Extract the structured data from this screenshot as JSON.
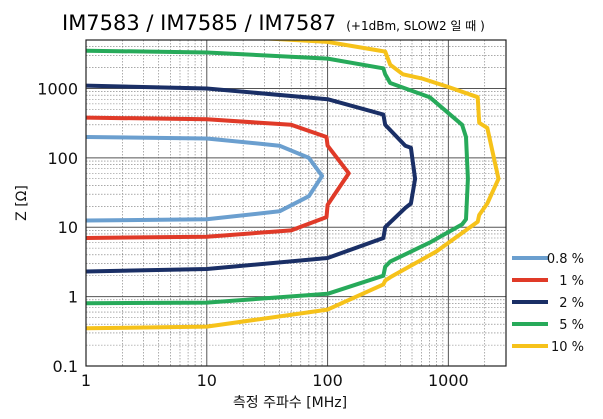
{
  "chart_data": {
    "type": "line",
    "title": "IM7583 / IM7585 / IM7587",
    "subtitle": "(+1dBm, SLOW2 일 때 )",
    "xlabel": "측정 주파수 [MHz]",
    "ylabel": "Z [Ω]",
    "x_scale": "log",
    "y_scale": "log",
    "xlim": [
      1,
      3000
    ],
    "ylim": [
      0.1,
      5000
    ],
    "grid": true,
    "x_ticks": [
      "1",
      "10",
      "100",
      "1000"
    ],
    "y_ticks": [
      "0.1",
      "1",
      "10",
      "100",
      "1000"
    ],
    "legend_position": "right",
    "series": [
      {
        "name": "0.8 %",
        "color": "#6b9fcf",
        "upper": [
          [
            1,
            200
          ],
          [
            10,
            190
          ],
          [
            40,
            150
          ],
          [
            70,
            100
          ],
          [
            90,
            55
          ]
        ],
        "lower": [
          [
            1,
            12.5
          ],
          [
            10,
            13
          ],
          [
            40,
            17
          ],
          [
            70,
            28
          ],
          [
            90,
            55
          ]
        ]
      },
      {
        "name": "1 %",
        "color": "#e03a28",
        "upper": [
          [
            1,
            380
          ],
          [
            10,
            360
          ],
          [
            50,
            300
          ],
          [
            98,
            200
          ],
          [
            100,
            150
          ],
          [
            150,
            60
          ]
        ],
        "lower": [
          [
            1,
            7
          ],
          [
            10,
            7.3
          ],
          [
            50,
            9
          ],
          [
            98,
            14
          ],
          [
            100,
            21
          ],
          [
            150,
            60
          ]
        ]
      },
      {
        "name": "2 %",
        "color": "#1a2f66",
        "upper": [
          [
            1,
            1100
          ],
          [
            10,
            1000
          ],
          [
            100,
            700
          ],
          [
            290,
            420
          ],
          [
            300,
            300
          ],
          [
            440,
            150
          ],
          [
            490,
            140
          ],
          [
            530,
            50
          ]
        ],
        "lower": [
          [
            1,
            2.3
          ],
          [
            10,
            2.5
          ],
          [
            100,
            3.6
          ],
          [
            290,
            7
          ],
          [
            300,
            10
          ],
          [
            440,
            19
          ],
          [
            490,
            22
          ],
          [
            530,
            50
          ]
        ]
      },
      {
        "name": "5 %",
        "color": "#27aa5a",
        "upper": [
          [
            1,
            3500
          ],
          [
            10,
            3300
          ],
          [
            100,
            2700
          ],
          [
            290,
            1950
          ],
          [
            300,
            1600
          ],
          [
            330,
            1200
          ],
          [
            700,
            750
          ],
          [
            1300,
            300
          ],
          [
            1400,
            200
          ],
          [
            1450,
            50
          ]
        ],
        "lower": [
          [
            1,
            0.8
          ],
          [
            10,
            0.82
          ],
          [
            100,
            1.1
          ],
          [
            290,
            2
          ],
          [
            300,
            2.7
          ],
          [
            330,
            3.2
          ],
          [
            700,
            6
          ],
          [
            1300,
            11
          ],
          [
            1400,
            13
          ],
          [
            1450,
            50
          ]
        ]
      },
      {
        "name": "10 %",
        "color": "#f6c21a",
        "upper": [
          [
            20,
            5500
          ],
          [
            100,
            4700
          ],
          [
            300,
            3400
          ],
          [
            330,
            2200
          ],
          [
            420,
            1600
          ],
          [
            600,
            1400
          ],
          [
            1000,
            1050
          ],
          [
            1750,
            750
          ],
          [
            1800,
            320
          ],
          [
            2100,
            270
          ],
          [
            2600,
            50
          ]
        ],
        "lower": [
          [
            1,
            0.35
          ],
          [
            10,
            0.37
          ],
          [
            100,
            0.65
          ],
          [
            290,
            1.5
          ],
          [
            300,
            1.7
          ],
          [
            330,
            1.9
          ],
          [
            800,
            4.5
          ],
          [
            1750,
            12
          ],
          [
            1800,
            15
          ],
          [
            2100,
            22
          ],
          [
            2600,
            50
          ]
        ]
      }
    ]
  }
}
